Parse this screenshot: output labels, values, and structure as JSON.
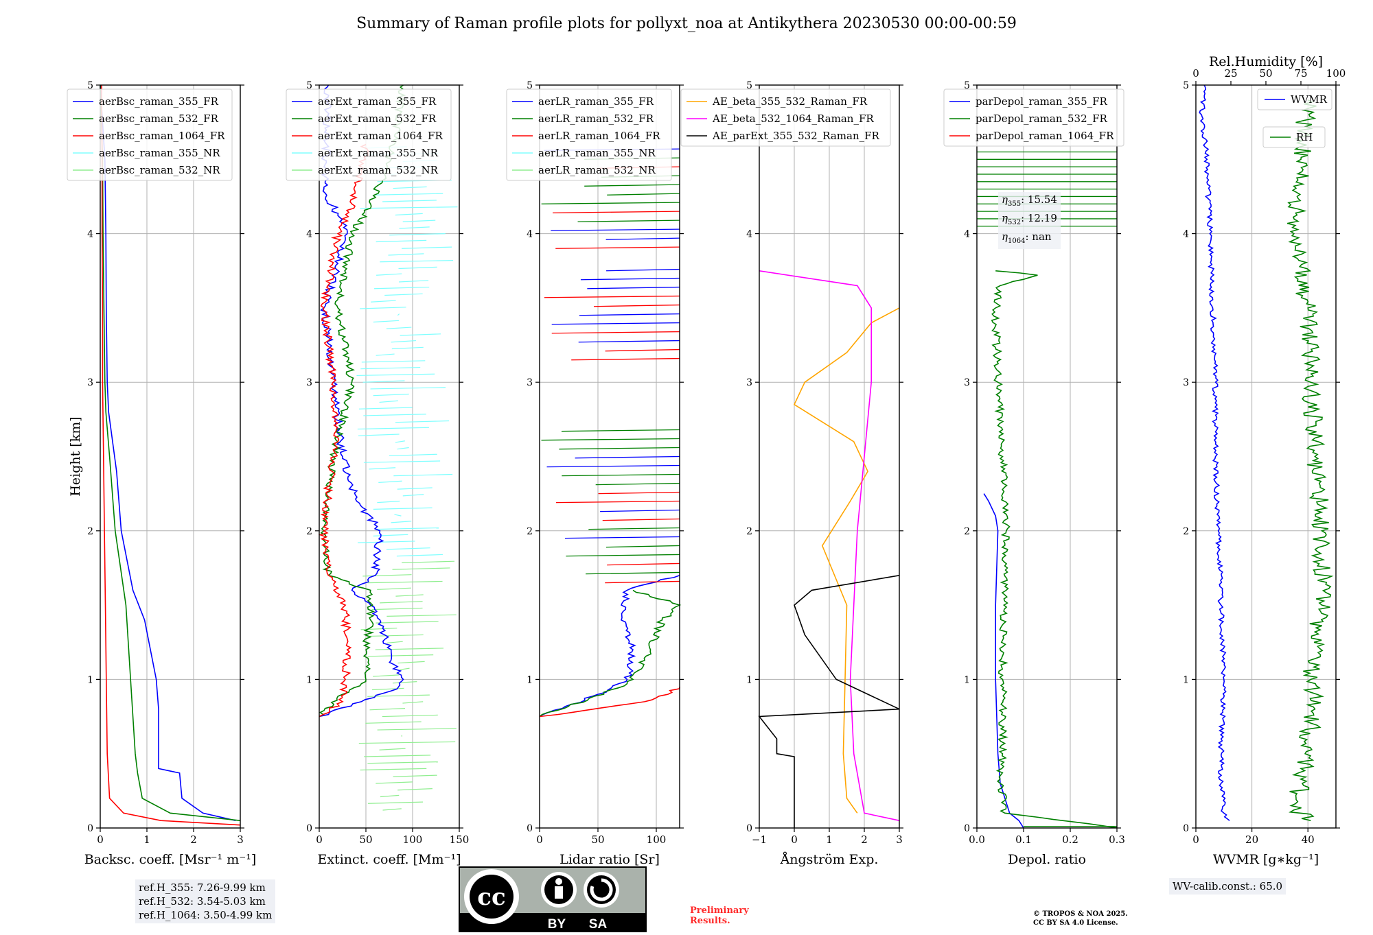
{
  "title": "Summary of Raman profile plots for pollyxt_noa at Antikythera 20230530 00:00-00:59",
  "colors": {
    "blue": "#0000ff",
    "green": "#008000",
    "red": "#ff0000",
    "cyan": "#80ffff",
    "lightgreen": "#90ee90",
    "orange": "#ffa500",
    "magenta": "#ff00ff",
    "black": "#000000"
  },
  "chart_data": [
    {
      "id": "backscatter",
      "type": "line",
      "xlabel": "Backsc. coeff. [Msr$^{-1}$ m$^{-1}$]",
      "ylabel": "Height [km]",
      "xlim": [
        0,
        3
      ],
      "ylim": [
        0,
        5
      ],
      "xticks": [
        "0",
        "1",
        "2",
        "3"
      ],
      "yticks": [
        "0",
        "1",
        "2",
        "3",
        "4",
        "5"
      ],
      "legend": "top-left",
      "grid": true,
      "series": [
        {
          "name": "aerBsc_raman_355_FR",
          "color": "blue",
          "y": [
            0.05,
            0.1,
            0.2,
            0.37,
            0.4,
            0.8,
            1.0,
            1.4,
            1.6,
            2.0,
            2.4,
            2.8,
            3.0,
            3.5,
            4.0,
            4.5,
            5.0
          ],
          "x": [
            2.9,
            2.2,
            1.75,
            1.7,
            1.25,
            1.25,
            1.2,
            0.95,
            0.7,
            0.45,
            0.35,
            0.18,
            0.15,
            0.13,
            0.12,
            0.1,
            0.0
          ]
        },
        {
          "name": "aerBsc_raman_532_FR",
          "color": "green",
          "y": [
            0.05,
            0.1,
            0.2,
            0.37,
            0.5,
            1.0,
            1.5,
            2.0,
            2.5,
            2.8,
            3.0,
            3.5,
            4.0,
            4.5,
            5.0
          ],
          "x": [
            3.0,
            1.5,
            0.9,
            0.8,
            0.75,
            0.65,
            0.55,
            0.32,
            0.2,
            0.12,
            0.1,
            0.08,
            0.06,
            0.05,
            0.0
          ]
        },
        {
          "name": "aerBsc_raman_1064_FR",
          "color": "red",
          "y": [
            0.02,
            0.05,
            0.1,
            0.2,
            0.5,
            1.0,
            1.5,
            2.0,
            2.5,
            3.0,
            3.5,
            4.0,
            4.5,
            5.0
          ],
          "x": [
            3.0,
            1.3,
            0.5,
            0.2,
            0.15,
            0.13,
            0.11,
            0.09,
            0.07,
            0.05,
            0.05,
            0.04,
            0.04,
            0.03
          ]
        },
        {
          "name": "aerBsc_raman_355_NR",
          "color": "cyan",
          "y": [],
          "x": []
        },
        {
          "name": "aerBsc_raman_532_NR",
          "color": "lightgreen",
          "y": [],
          "x": []
        }
      ]
    },
    {
      "id": "extinction",
      "type": "line",
      "xlabel": "Extinct. coeff. [Mm$^{-1}$]",
      "xlim": [
        0,
        150
      ],
      "ylim": [
        0,
        5
      ],
      "xticks": [
        "0",
        "50",
        "100",
        "150"
      ],
      "yticks": [
        "0",
        "1",
        "2",
        "3",
        "4",
        "5"
      ],
      "legend": "top-left",
      "grid": true,
      "series": [
        {
          "name": "aerExt_raman_355_FR",
          "color": "blue",
          "y": [
            0.75,
            0.85,
            0.95,
            1.0,
            1.1,
            1.3,
            1.5,
            1.6,
            1.7,
            2.0,
            2.2,
            2.5,
            3.0,
            3.3,
            3.5,
            3.8,
            4.0,
            4.3,
            4.6,
            5.0
          ],
          "x": [
            0,
            45,
            85,
            90,
            80,
            70,
            55,
            35,
            60,
            65,
            40,
            25,
            15,
            10,
            5,
            20,
            30,
            5,
            8,
            10
          ]
        },
        {
          "name": "aerExt_raman_532_FR",
          "color": "green",
          "y": [
            0.75,
            0.9,
            1.0,
            1.2,
            1.4,
            1.6,
            1.7,
            2.0,
            2.5,
            3.0,
            3.5,
            4.0,
            4.2,
            4.4,
            4.6,
            5.0
          ],
          "x": [
            0,
            25,
            50,
            50,
            55,
            55,
            10,
            5,
            15,
            35,
            20,
            35,
            55,
            70,
            80,
            90
          ]
        },
        {
          "name": "aerExt_raman_1064_FR",
          "color": "red",
          "y": [
            0.75,
            0.85,
            1.0,
            1.2,
            1.5,
            1.7,
            2.0,
            2.3,
            2.6,
            3.0,
            3.5,
            4.0,
            4.2,
            4.4,
            4.6
          ],
          "x": [
            0,
            25,
            28,
            30,
            28,
            10,
            5,
            10,
            20,
            15,
            5,
            20,
            35,
            45,
            50
          ]
        },
        {
          "name": "aerExt_raman_355_NR",
          "color": "cyan",
          "y": [],
          "x": []
        },
        {
          "name": "aerExt_raman_532_NR",
          "color": "lightgreen",
          "y": [],
          "x": []
        }
      ]
    },
    {
      "id": "lidar_ratio",
      "type": "line",
      "xlabel": "Lidar ratio [Sr]",
      "xlim": [
        0,
        120
      ],
      "ylim": [
        0,
        5
      ],
      "xticks": [
        "0",
        "50",
        "100"
      ],
      "yticks": [
        "0",
        "1",
        "2",
        "3",
        "4",
        "5"
      ],
      "legend": "top-left",
      "grid": true,
      "series": [
        {
          "name": "aerLR_raman_355_FR",
          "color": "blue",
          "y": [
            0.75,
            0.9,
            1.0,
            1.2,
            1.4,
            1.6,
            1.7
          ],
          "x": [
            0,
            50,
            75,
            80,
            70,
            75,
            120
          ]
        },
        {
          "name": "aerLR_raman_532_FR",
          "color": "green",
          "y": [
            0.75,
            0.9,
            1.0,
            1.2,
            1.4,
            1.5,
            1.6
          ],
          "x": [
            0,
            55,
            80,
            95,
            105,
            120,
            80
          ]
        },
        {
          "name": "aerLR_raman_1064_FR",
          "color": "red",
          "y": [
            0.75,
            0.85,
            0.9,
            0.95
          ],
          "x": [
            0,
            90,
            110,
            120
          ]
        },
        {
          "name": "aerLR_raman_355_NR",
          "color": "cyan",
          "y": [],
          "x": []
        },
        {
          "name": "aerLR_raman_532_NR",
          "color": "lightgreen",
          "y": [],
          "x": []
        }
      ]
    },
    {
      "id": "angstrom",
      "type": "line",
      "xlabel": "Ångström Exp.",
      "xlim": [
        -1,
        3
      ],
      "ylim": [
        0,
        5
      ],
      "xticks": [
        "−1",
        "0",
        "1",
        "2",
        "3"
      ],
      "yticks": [
        "0",
        "1",
        "2",
        "3",
        "4",
        "5"
      ],
      "legend": "top-right",
      "grid": true,
      "series": [
        {
          "name": "AE_beta_355_532_Raman_FR",
          "color": "orange",
          "y": [
            0.1,
            0.2,
            0.5,
            1.0,
            1.5,
            1.9,
            2.2,
            2.4,
            2.6,
            2.85,
            3.0,
            3.2,
            3.4,
            3.5
          ],
          "x": [
            1.8,
            1.5,
            1.4,
            1.45,
            1.5,
            0.8,
            1.6,
            2.1,
            1.7,
            0.0,
            0.3,
            1.5,
            2.2,
            3.0
          ]
        },
        {
          "name": "AE_beta_532_1064_Raman_FR",
          "color": "magenta",
          "y": [
            0.05,
            0.1,
            0.5,
            1.0,
            1.5,
            2.0,
            2.5,
            3.0,
            3.5,
            3.65,
            3.75
          ],
          "x": [
            3.0,
            2.0,
            1.7,
            1.6,
            1.7,
            1.8,
            2.0,
            2.2,
            2.2,
            1.8,
            -1.0
          ]
        },
        {
          "name": "AE_parExt_355_532_Raman_FR",
          "color": "black",
          "y": [
            0.0,
            0.48,
            0.5,
            0.6,
            0.75,
            0.8,
            1.0,
            1.3,
            1.5,
            1.6,
            1.7
          ],
          "x": [
            0.0,
            0.0,
            -0.5,
            -0.5,
            -1.0,
            3.0,
            1.2,
            0.3,
            0.0,
            0.5,
            3.0
          ]
        }
      ]
    },
    {
      "id": "depolarization",
      "type": "line",
      "xlabel": "Depol. ratio",
      "xlim": [
        0,
        0.3
      ],
      "ylim": [
        0,
        5
      ],
      "xticks": [
        "0.0",
        "0.1",
        "0.2",
        "0.3"
      ],
      "yticks": [
        "0",
        "1",
        "2",
        "3",
        "4",
        "5"
      ],
      "legend": "top-left",
      "grid": true,
      "series": [
        {
          "name": "parDepol_raman_355_FR",
          "color": "blue",
          "y": [
            0.0,
            0.05,
            0.1,
            0.3,
            0.5,
            1.0,
            1.5,
            2.0,
            2.1,
            2.2,
            2.25
          ],
          "x": [
            0.1,
            0.09,
            0.07,
            0.05,
            0.045,
            0.04,
            0.04,
            0.045,
            0.04,
            0.025,
            0.015
          ]
        },
        {
          "name": "parDepol_raman_532_FR",
          "color": "green",
          "y": [
            0.0,
            0.1,
            0.3,
            0.5,
            1.0,
            1.5,
            2.0,
            2.5,
            3.0,
            3.5,
            3.65,
            3.72,
            3.75
          ],
          "x": [
            0.3,
            0.06,
            0.05,
            0.055,
            0.055,
            0.058,
            0.063,
            0.055,
            0.045,
            0.04,
            0.05,
            0.13,
            0.04
          ]
        },
        {
          "name": "parDepol_raman_1064_FR",
          "color": "red",
          "y": [],
          "x": []
        }
      ],
      "annotations": {
        "eta355": "15.54",
        "eta532": "12.19",
        "eta1064": "nan"
      }
    },
    {
      "id": "wvmr_rh",
      "type": "line",
      "xlabel": "WVMR [$g*kg^{-1}$]",
      "x2label": "Rel.Humidity [%]",
      "xlim": [
        0,
        50
      ],
      "x2lim": [
        0,
        100
      ],
      "ylim": [
        0,
        5
      ],
      "xticks": [
        "0",
        "20",
        "40"
      ],
      "x2ticks": [
        "0",
        "25",
        "50",
        "75",
        "100"
      ],
      "yticks": [
        "0",
        "1",
        "2",
        "3",
        "4",
        "5"
      ],
      "legend": "top-right",
      "grid": true,
      "series": [
        {
          "name": "WVMR",
          "color": "blue",
          "axis": "bottom",
          "y": [
            0.05,
            0.1,
            0.3,
            0.6,
            1.0,
            1.5,
            2.0,
            2.5,
            3.0,
            3.5,
            4.0,
            4.5,
            4.8,
            5.0
          ],
          "x": [
            12,
            10,
            9,
            9,
            10,
            9,
            8,
            7,
            7,
            6,
            5,
            4,
            2,
            3
          ]
        },
        {
          "name": "RH",
          "color": "green",
          "axis": "top",
          "y": [
            0.05,
            0.15,
            0.3,
            0.5,
            0.8,
            1.0,
            1.5,
            2.0,
            2.5,
            3.0,
            3.5,
            4.0,
            4.5,
            4.9
          ],
          "x": [
            82,
            68,
            76,
            78,
            85,
            82,
            90,
            90,
            85,
            82,
            80,
            70,
            75,
            80
          ]
        }
      ]
    }
  ],
  "info": {
    "ref_355": "ref.H_355: 7.26-9.99 km",
    "ref_532": "ref.H_532: 3.54-5.03 km",
    "ref_1064": "ref.H_1064: 3.50-4.99 km",
    "wv_calib": "WV-calib.const.: 65.0",
    "eta355_prefix": "η",
    "eta355_sub": "355",
    "eta532_sub": "532",
    "eta1064_sub": "1064",
    "preliminary_line1": "Preliminary",
    "preliminary_line2": "Results.",
    "copyright_line1": "© TROPOS & NOA 2025.",
    "copyright_line2": "CC BY SA 4.0 License.",
    "cc_badge_text": "cc",
    "cc_by": "BY",
    "cc_sa": "SA"
  }
}
